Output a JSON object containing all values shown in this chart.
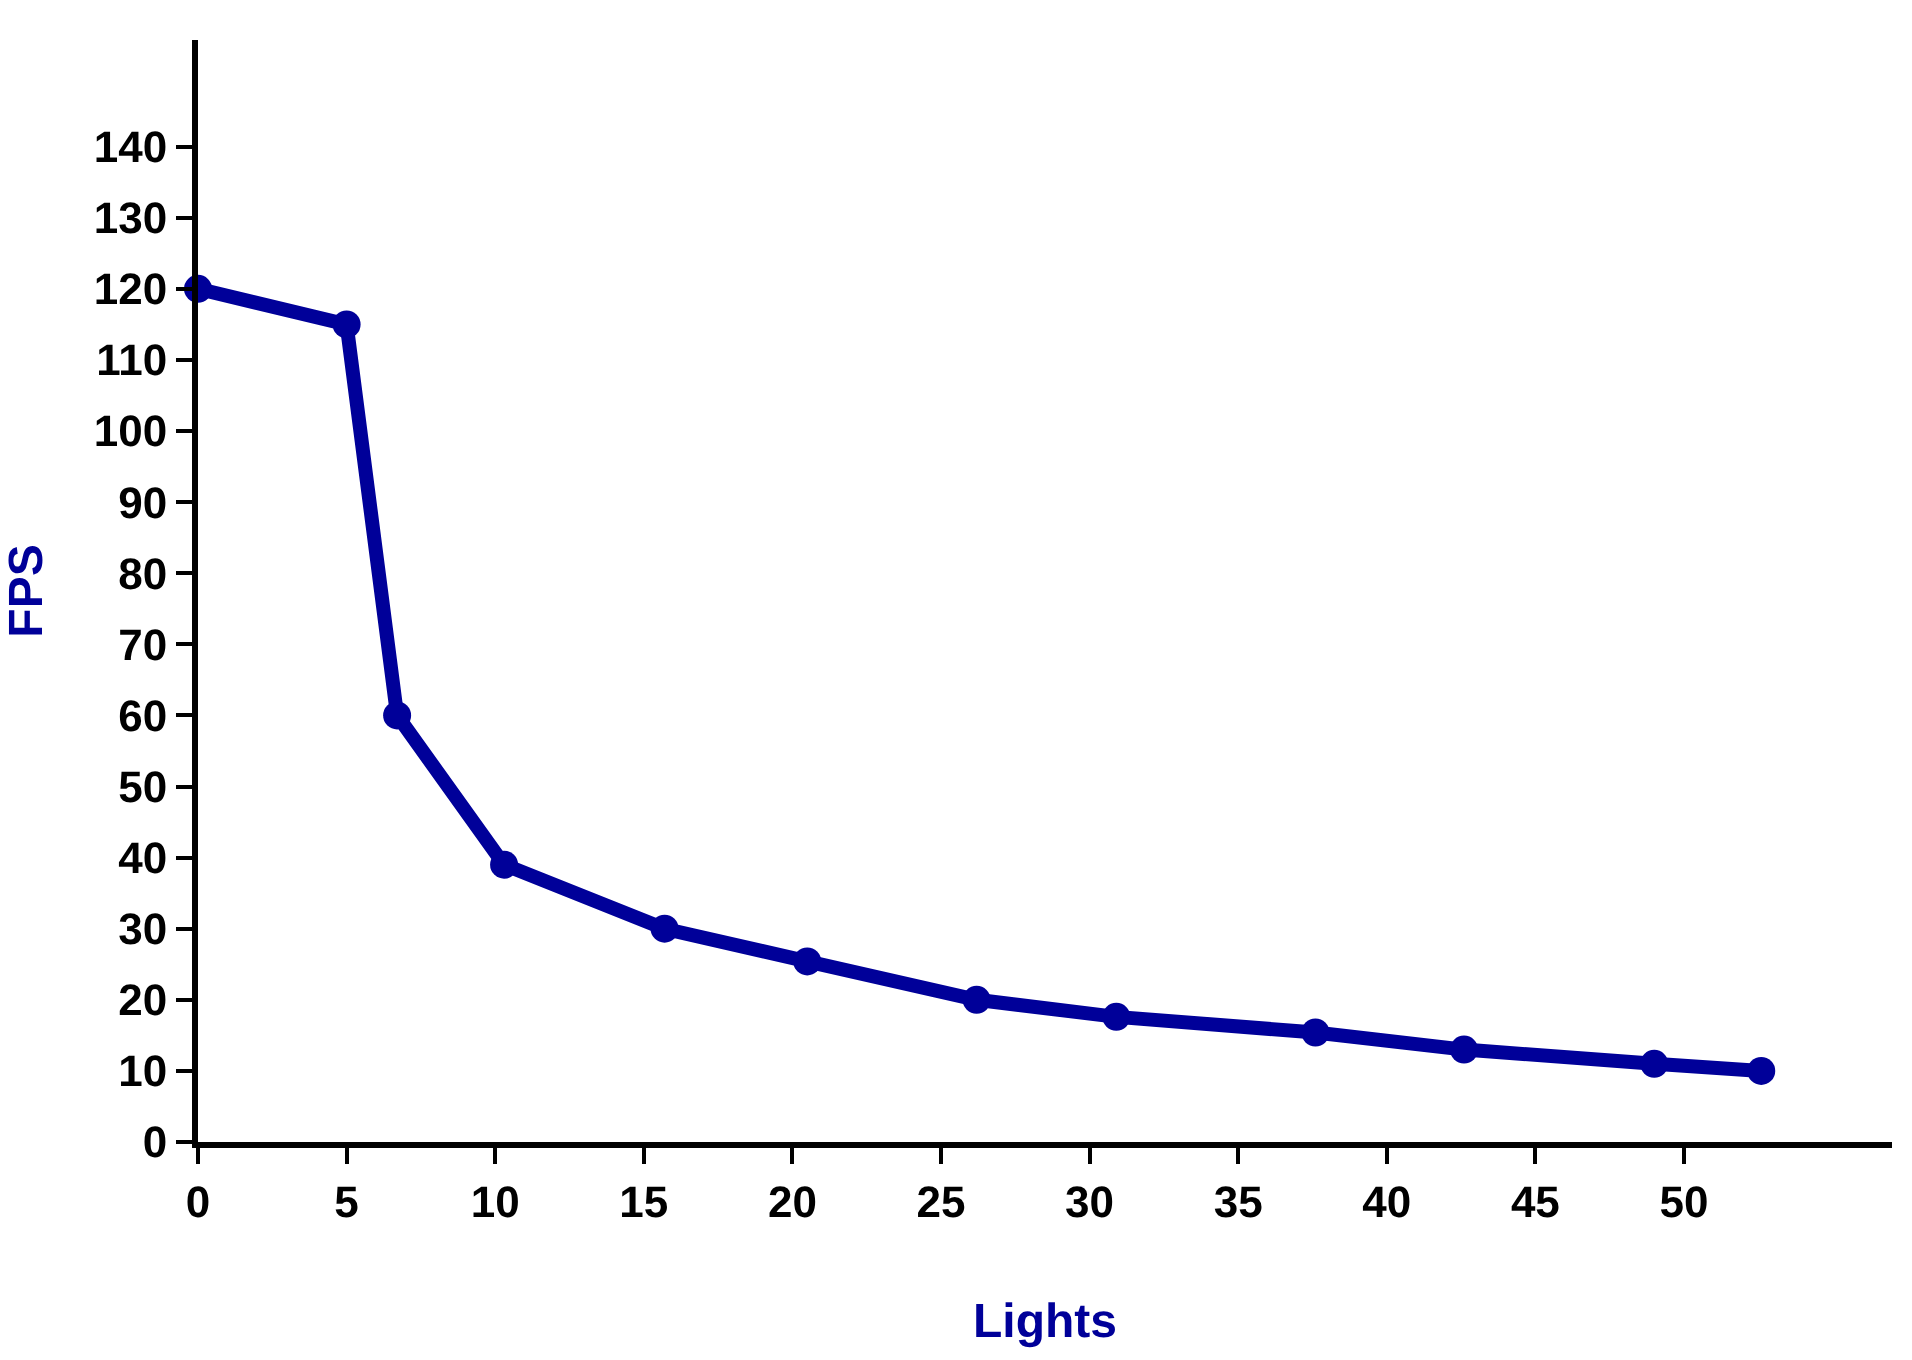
{
  "chart_data": {
    "type": "line",
    "xlabel": "Lights",
    "ylabel": "FPS",
    "x": [
      0,
      5,
      6.7,
      10.3,
      15.7,
      20.5,
      26.2,
      30.9,
      37.6,
      42.6,
      49,
      52.6
    ],
    "series": [
      {
        "color": "#000099",
        "values": [
          120,
          115,
          60,
          39,
          30,
          25.4,
          20,
          17.6,
          15.4,
          13,
          11,
          10
        ]
      }
    ],
    "xlim": [
      0,
      57
    ],
    "xticks": [
      0,
      5,
      10,
      15,
      20,
      25,
      30,
      35,
      40,
      45,
      50
    ],
    "ylim": [
      0,
      155
    ],
    "yticks": [
      0,
      10,
      20,
      30,
      40,
      50,
      60,
      70,
      80,
      90,
      100,
      110,
      120,
      130,
      140
    ],
    "marker": "circle",
    "line_style": "solid"
  }
}
